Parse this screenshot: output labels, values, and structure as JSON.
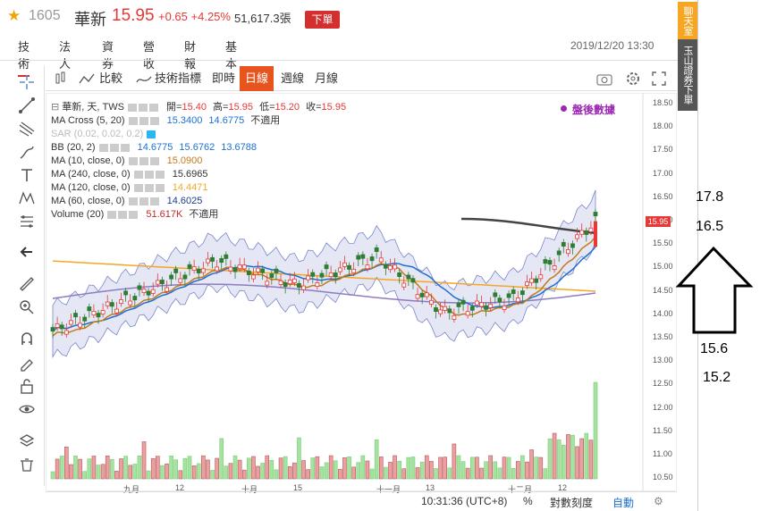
{
  "header": {
    "code": "1605",
    "name": "華新",
    "price": "15.95",
    "change": "+0.65 +4.25%",
    "volume": "51,617.3張",
    "order_button": "下單",
    "datetime": "2019/12/20 13:30"
  },
  "tabs": [
    "技術",
    "法人",
    "資券",
    "營收",
    "財報",
    "基本"
  ],
  "chart_toolbar": {
    "compare": "比較",
    "indicators": "技術指標",
    "realtime": "即時",
    "daily": "日線",
    "weekly": "週線",
    "monthly": "月線"
  },
  "indicators": {
    "main": "華新, 天, TWS",
    "open_label": "開=",
    "open": "15.40",
    "high_label": "高=",
    "high": "15.95",
    "low_label": "低=",
    "low": "15.20",
    "close_label": "收=",
    "close": "15.95",
    "macross": "MA Cross (5, 20)",
    "macross_v1": "15.3400",
    "macross_v2": "14.6775",
    "macross_v3": "不適用",
    "sar": "SAR (0.02, 0.02, 0.2)",
    "bb": "BB (20, 2)",
    "bb_v1": "14.6775",
    "bb_v2": "15.6762",
    "bb_v3": "13.6788",
    "ma10": "MA (10, close, 0)",
    "ma10_v": "15.0900",
    "ma240": "MA (240, close, 0)",
    "ma240_v": "15.6965",
    "ma120": "MA (120, close, 0)",
    "ma120_v": "14.4471",
    "ma60": "MA (60, close, 0)",
    "ma60_v": "14.6025",
    "volume": "Volume (20)",
    "volume_v": "51.617K",
    "volume_v2": "不適用",
    "after_hours": "盤後數據"
  },
  "y_axis": [
    "18.50",
    "18.00",
    "17.50",
    "17.00",
    "16.50",
    "16.00",
    "15.50",
    "15.00",
    "14.50",
    "14.00",
    "13.50",
    "13.00",
    "12.50",
    "12.00",
    "11.50",
    "11.00",
    "10.50"
  ],
  "price_tag": "15.95",
  "x_axis": [
    {
      "label": "九月",
      "x": 138
    },
    {
      "label": "12",
      "x": 196
    },
    {
      "label": "十月",
      "x": 270
    },
    {
      "label": "15",
      "x": 328
    },
    {
      "label": "十一月",
      "x": 421
    },
    {
      "label": "13",
      "x": 476
    },
    {
      "label": "十二月",
      "x": 568
    },
    {
      "label": "12",
      "x": 624
    }
  ],
  "status": {
    "time": "10:31:36 (UTC+8)",
    "percent": "%",
    "log": "對數刻度",
    "auto": "自動"
  },
  "side": {
    "chat": "聊天室",
    "broker": "玉山證券下單"
  },
  "annotations": {
    "a": "17.8",
    "b": "16.5",
    "c": "15.6",
    "d": "15.2"
  },
  "colors": {
    "up": "#1a1a1a",
    "down": "#e53935",
    "accent": "#e8541e",
    "purple": "#9c27b0"
  }
}
